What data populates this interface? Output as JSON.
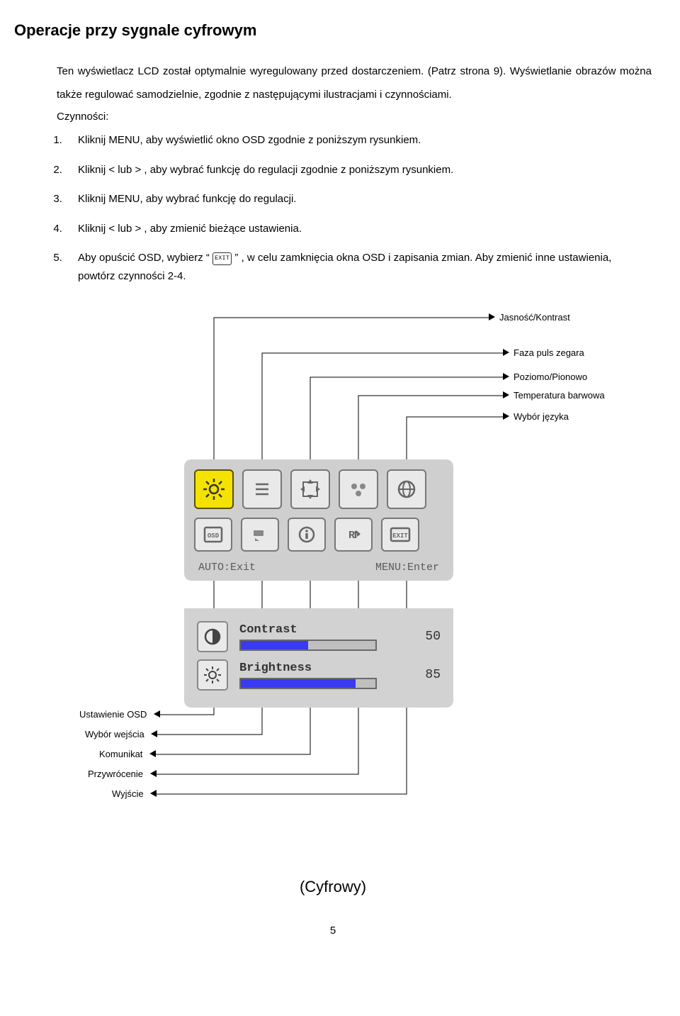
{
  "heading": "Operacje przy sygnale cyfrowym",
  "intro": "Ten wyświetlacz LCD został optymalnie wyregulowany przed dostarczeniem. (Patrz strona 9). Wyświetlanie obrazów można także regulować samodzielnie, zgodnie z następującymi ilustracjami i czynnościami.",
  "sublabel": "Czynności:",
  "steps": {
    "s1": "Kliknij MENU, aby wyświetlić okno OSD zgodnie z poniższym rysunkiem.",
    "s2": "Kliknij <   lub   > , aby wybrać funkcję do regulacji zgodnie z poniższym rysunkiem.",
    "s3": "Kliknij MENU, aby wybrać funkcję do regulacji.",
    "s4": "Kliknij <   lub   > , aby zmienić bieżące ustawienia.",
    "s5a": "Aby opuścić OSD, wybierz “ ",
    "s5_chip": "EXIT",
    "s5b": " ” , w celu zamknięcia okna OSD i zapisania zmian. Aby zmienić inne ustawienia, powtórz czynności 2-4."
  },
  "callouts": {
    "c1": "Jasność/Kontrast",
    "c2": "Faza puls zegara",
    "c3": "Poziomo/Pionowo",
    "c4": "Temperatura barwowa",
    "c5": "Wybór języka",
    "b1": "Ustawienie OSD",
    "b2": "Wybór  wejścia",
    "b3": "Komunikat",
    "b4": "Przywrócenie",
    "b5": "Wyjście"
  },
  "osd": {
    "hint_left": "AUTO:Exit",
    "hint_right": "MENU:Enter",
    "contrast_label": "Contrast",
    "contrast_value": "50",
    "contrast_fill_pct": 50,
    "brightness_label": "Brightness",
    "brightness_value": "85",
    "brightness_fill_pct": 85,
    "colors": {
      "panel_bg": "#cfcfcf",
      "selected_bg": "#f4e200",
      "bar_fill": "#3a3af0"
    }
  },
  "mode_label": "(Cyfrowy)",
  "page_number": "5",
  "line_color": "#000000"
}
